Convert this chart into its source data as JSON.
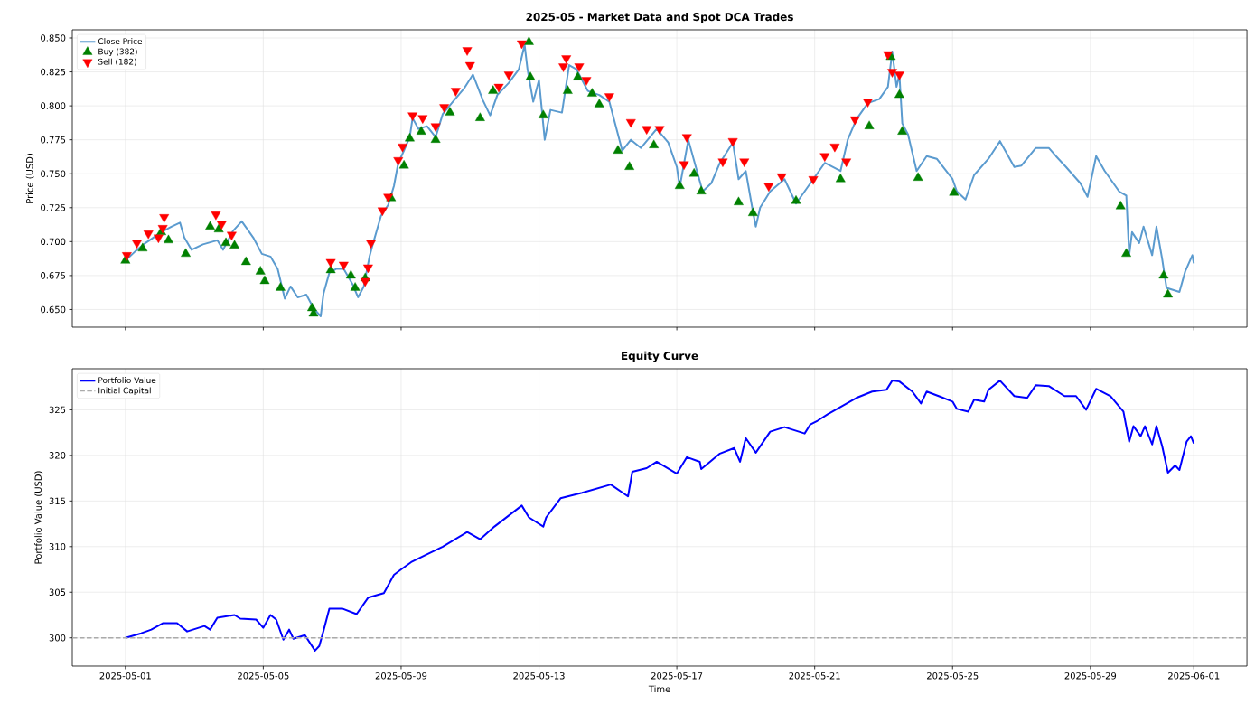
{
  "chart_data": [
    {
      "type": "line",
      "title": "2025-05 - Market Data and Spot DCA Trades",
      "ylabel": "Price (USD)",
      "xlim": [
        "2025-04-29T11:00",
        "2025-06-02T13:00"
      ],
      "ylim": [
        0.637,
        0.856
      ],
      "xticks": [
        "2025-05-01",
        "2025-05-05",
        "2025-05-09",
        "2025-05-13",
        "2025-05-17",
        "2025-05-21",
        "2025-05-25",
        "2025-05-29",
        "2025-06-01"
      ],
      "yticks": [
        {
          "value": 0.65,
          "label": "0.650"
        },
        0.675,
        {
          "value": 0.7,
          "label": "0.700"
        },
        0.725,
        {
          "value": 0.75,
          "label": "0.750"
        },
        0.775,
        {
          "value": 0.8,
          "label": "0.800"
        },
        0.825,
        {
          "value": 0.85,
          "label": "0.850"
        }
      ],
      "tick_labels": "y",
      "grid": true,
      "legend": "top left",
      "series": [
        {
          "name": "Close Price",
          "color": "#5b9bcf",
          "x": [
            "2025-05-01T00:00",
            "2025-05-01T07:00",
            "2025-05-01T14:00",
            "2025-05-02T01:00",
            "2025-05-02T08:00",
            "2025-05-02T14:00",
            "2025-05-02T17:00",
            "2025-05-02T22:00",
            "2025-05-03T06:00",
            "2025-05-03T16:00",
            "2025-05-03T20:00",
            "2025-05-04T03:00",
            "2025-05-04T09:00",
            "2025-05-04T17:00",
            "2025-05-04T23:00",
            "2025-05-05T05:00",
            "2025-05-05T10:00",
            "2025-05-05T15:00",
            "2025-05-05T19:00",
            "2025-05-06T00:00",
            "2025-05-06T06:00",
            "2025-05-06T11:00",
            "2025-05-06T16:00",
            "2025-05-06T18:00",
            "2025-05-06T22:00",
            "2025-05-07T03:00",
            "2025-05-07T08:00",
            "2025-05-07T14:00",
            "2025-05-07T18:00",
            "2025-05-07T22:00",
            "2025-05-08T02:00",
            "2025-05-08T04:00",
            "2025-05-08T10:00",
            "2025-05-08T15:00",
            "2025-05-08T19:00",
            "2025-05-08T22:00",
            "2025-05-09T02:00",
            "2025-05-09T06:00",
            "2025-05-09T08:00",
            "2025-05-09T12:00",
            "2025-05-09T18:00",
            "2025-05-10T00:00",
            "2025-05-10T05:00",
            "2025-05-10T12:00",
            "2025-05-10T20:00",
            "2025-05-11T02:00",
            "2025-05-11T09:00",
            "2025-05-11T14:00",
            "2025-05-11T19:00",
            "2025-05-12T03:00",
            "2025-05-12T10:00",
            "2025-05-12T14:00",
            "2025-05-12T16:00",
            "2025-05-12T20:00",
            "2025-05-13T00:00",
            "2025-05-13T04:00",
            "2025-05-13T08:00",
            "2025-05-13T16:00",
            "2025-05-13T21:00",
            "2025-05-14T02:00",
            "2025-05-14T10:00",
            "2025-05-14T18:00",
            "2025-05-15T01:00",
            "2025-05-15T10:00",
            "2025-05-15T16:00",
            "2025-05-15T23:00",
            "2025-05-16T10:00",
            "2025-05-16T18:00",
            "2025-05-17T00:00",
            "2025-05-17T02:00",
            "2025-05-17T08:00",
            "2025-05-17T14:00",
            "2025-05-17T18:00",
            "2025-05-18T00:00",
            "2025-05-18T06:00",
            "2025-05-18T15:00",
            "2025-05-18T19:00",
            "2025-05-19T00:00",
            "2025-05-19T05:00",
            "2025-05-19T07:00",
            "2025-05-19T10:00",
            "2025-05-19T17:00",
            "2025-05-20T03:00",
            "2025-05-20T11:00",
            "2025-05-20T21:00",
            "2025-05-21T07:00",
            "2025-05-21T18:00",
            "2025-05-21T23:00",
            "2025-05-22T05:00",
            "2025-05-22T13:00",
            "2025-05-22T21:00",
            "2025-05-23T03:00",
            "2025-05-23T06:00",
            "2025-05-23T09:00",
            "2025-05-23T11:00",
            "2025-05-23T13:00",
            "2025-05-23T17:00",
            "2025-05-23T23:00",
            "2025-05-24T06:00",
            "2025-05-24T13:00",
            "2025-05-25T00:00",
            "2025-05-25T03:00",
            "2025-05-25T09:00",
            "2025-05-25T15:00",
            "2025-05-26T01:00",
            "2025-05-26T09:00",
            "2025-05-26T19:00",
            "2025-05-27T00:00",
            "2025-05-27T10:00",
            "2025-05-27T19:00",
            "2025-05-28T00:00",
            "2025-05-28T07:00",
            "2025-05-28T17:00",
            "2025-05-28T22:00",
            "2025-05-29T04:00",
            "2025-05-29T10:00",
            "2025-05-29T20:00",
            "2025-05-30T01:00",
            "2025-05-30T03:00",
            "2025-05-30T05:00",
            "2025-05-30T10:00",
            "2025-05-30T13:00",
            "2025-05-30T19:00",
            "2025-05-30T22:00",
            "2025-05-31T02:00",
            "2025-05-31T05:00",
            "2025-05-31T14:00",
            "2025-05-31T18:00",
            "2025-05-31T23:00",
            "2025-06-01T00:00"
          ],
          "values": [
            0.686,
            0.693,
            0.699,
            0.707,
            0.711,
            0.714,
            0.703,
            0.694,
            0.698,
            0.701,
            0.694,
            0.708,
            0.715,
            0.703,
            0.691,
            0.689,
            0.68,
            0.658,
            0.667,
            0.659,
            0.661,
            0.651,
            0.645,
            0.662,
            0.677,
            0.68,
            0.68,
            0.669,
            0.659,
            0.667,
            0.689,
            0.697,
            0.719,
            0.727,
            0.741,
            0.758,
            0.767,
            0.777,
            0.791,
            0.783,
            0.785,
            0.777,
            0.794,
            0.803,
            0.813,
            0.823,
            0.804,
            0.793,
            0.808,
            0.817,
            0.827,
            0.845,
            0.827,
            0.803,
            0.819,
            0.775,
            0.797,
            0.795,
            0.83,
            0.827,
            0.811,
            0.808,
            0.803,
            0.767,
            0.775,
            0.769,
            0.783,
            0.773,
            0.755,
            0.74,
            0.775,
            0.752,
            0.737,
            0.743,
            0.758,
            0.773,
            0.746,
            0.752,
            0.722,
            0.711,
            0.725,
            0.737,
            0.746,
            0.728,
            0.743,
            0.758,
            0.752,
            0.775,
            0.79,
            0.802,
            0.805,
            0.814,
            0.84,
            0.814,
            0.823,
            0.787,
            0.779,
            0.752,
            0.763,
            0.761,
            0.746,
            0.737,
            0.731,
            0.749,
            0.761,
            0.774,
            0.755,
            0.756,
            0.769,
            0.769,
            0.763,
            0.755,
            0.743,
            0.733,
            0.763,
            0.752,
            0.737,
            0.734,
            0.69,
            0.707,
            0.699,
            0.711,
            0.69,
            0.711,
            0.687,
            0.666,
            0.663,
            0.678,
            0.69,
            0.684
          ]
        },
        {
          "name": "Buy (382)",
          "type": "scatter",
          "marker": "triangle",
          "color": "#008000",
          "x": [
            "2025-05-01T00:00",
            "2025-05-01T12:00",
            "2025-05-02T01:00",
            "2025-05-02T06:00",
            "2025-05-02T18:00",
            "2025-05-03T11:00",
            "2025-05-03T17:00",
            "2025-05-03T22:00",
            "2025-05-04T04:00",
            "2025-05-04T12:00",
            "2025-05-04T22:00",
            "2025-05-05T01:00",
            "2025-05-05T12:00",
            "2025-05-06T10:00",
            "2025-05-06T11:00",
            "2025-05-06T23:00",
            "2025-05-07T13:00",
            "2025-05-07T16:00",
            "2025-05-07T23:00",
            "2025-05-08T11:00",
            "2025-05-08T17:00",
            "2025-05-09T02:00",
            "2025-05-09T06:00",
            "2025-05-09T14:00",
            "2025-05-10T00:00",
            "2025-05-10T10:00",
            "2025-05-10T22:00",
            "2025-05-11T07:00",
            "2025-05-11T16:00",
            "2025-05-12T17:00",
            "2025-05-12T18:00",
            "2025-05-13T03:00",
            "2025-05-13T20:00",
            "2025-05-14T03:00",
            "2025-05-14T13:00",
            "2025-05-14T18:00",
            "2025-05-15T07:00",
            "2025-05-15T15:00",
            "2025-05-16T08:00",
            "2025-05-17T02:00",
            "2025-05-17T12:00",
            "2025-05-17T17:00",
            "2025-05-18T19:00",
            "2025-05-19T05:00",
            "2025-05-20T11:00",
            "2025-05-20T22:00",
            "2025-05-21T18:00",
            "2025-05-22T14:00",
            "2025-05-23T05:00",
            "2025-05-23T11:00",
            "2025-05-23T13:00",
            "2025-05-24T00:00",
            "2025-05-25T01:00",
            "2025-05-29T21:00",
            "2025-05-30T01:00",
            "2025-05-31T03:00",
            "2025-05-31T06:00"
          ],
          "values": [
            0.686,
            0.695,
            0.707,
            0.701,
            0.691,
            0.711,
            0.709,
            0.699,
            0.697,
            0.685,
            0.678,
            0.671,
            0.666,
            0.651,
            0.647,
            0.679,
            0.675,
            0.666,
            0.673,
            null,
            0.732,
            0.756,
            0.776,
            0.781,
            0.775,
            0.795,
            null,
            0.791,
            0.811,
            0.847,
            0.821,
            0.793,
            0.811,
            0.821,
            0.809,
            0.801,
            0.767,
            0.755,
            0.771,
            0.741,
            0.75,
            0.737,
            0.729,
            0.721,
            0.73,
            null,
            0.746,
            0.785,
            0.836,
            0.808,
            0.781,
            0.747,
            0.736,
            0.726,
            0.691,
            0.675,
            0.661
          ]
        },
        {
          "name": "Sell (182)",
          "type": "scatter",
          "marker": "triangle down",
          "color": "#ff0000",
          "x": [
            "2025-05-01T01:00",
            "2025-05-01T08:00",
            "2025-05-01T16:00",
            "2025-05-01T23:00",
            "2025-05-02T02:00",
            "2025-05-02T03:00",
            "2025-05-03T15:00",
            "2025-05-03T19:00",
            "2025-05-04T02:00",
            "2025-05-06T23:00",
            "2025-05-07T08:00",
            "2025-05-07T23:00",
            "2025-05-08T01:00",
            "2025-05-08T03:00",
            "2025-05-08T11:00",
            "2025-05-08T15:00",
            "2025-05-08T22:00",
            "2025-05-09T01:00",
            "2025-05-09T08:00",
            "2025-05-09T15:00",
            "2025-05-10T00:00",
            "2025-05-10T06:00",
            "2025-05-10T14:00",
            "2025-05-10T22:00",
            "2025-05-11T00:00",
            "2025-05-11T20:00",
            "2025-05-12T03:00",
            "2025-05-12T12:00",
            "2025-05-13T17:00",
            "2025-05-13T19:00",
            "2025-05-14T04:00",
            "2025-05-14T09:00",
            "2025-05-15T01:00",
            "2025-05-15T16:00",
            "2025-05-16T03:00",
            "2025-05-16T12:00",
            "2025-05-17T05:00",
            "2025-05-17T07:00",
            "2025-05-18T08:00",
            "2025-05-18T15:00",
            "2025-05-18T23:00",
            "2025-05-19T16:00",
            "2025-05-20T01:00",
            "2025-05-20T23:00",
            "2025-05-21T07:00",
            "2025-05-21T14:00",
            "2025-05-21T22:00",
            "2025-05-22T04:00",
            "2025-05-22T13:00",
            "2025-05-23T03:00",
            "2025-05-23T06:00",
            "2025-05-23T11:00"
          ],
          "values": [
            0.69,
            0.699,
            0.706,
            0.703,
            0.71,
            0.718,
            0.72,
            0.713,
            0.705,
            0.685,
            0.683,
            0.671,
            0.681,
            0.699,
            0.723,
            0.733,
            0.76,
            0.77,
            0.793,
            0.791,
            0.785,
            0.799,
            0.811,
            0.841,
            0.83,
            0.814,
            0.823,
            0.846,
            0.829,
            0.835,
            0.829,
            0.819,
            0.807,
            0.788,
            0.783,
            0.783,
            0.757,
            0.777,
            0.759,
            0.774,
            0.759,
            0.741,
            0.748,
            0.746,
            0.763,
            0.77,
            0.759,
            0.79,
            0.803,
            0.838,
            0.825,
            0.823
          ]
        }
      ]
    },
    {
      "type": "line",
      "title": "Equity Curve",
      "xlabel": "Time",
      "ylabel": "Portfolio Value (USD)",
      "xlim": [
        "2025-04-29T11:00",
        "2025-06-02T13:00"
      ],
      "ylim": [
        296.9,
        329.5
      ],
      "xticks": [
        "2025-05-01",
        "2025-05-05",
        "2025-05-09",
        "2025-05-13",
        "2025-05-17",
        "2025-05-21",
        "2025-05-25",
        "2025-05-29",
        "2025-06-01"
      ],
      "yticks": [
        300,
        305,
        310,
        315,
        320,
        325
      ],
      "grid": true,
      "legend": "top left",
      "series": [
        {
          "name": "Portfolio Value",
          "color": "#0000ff",
          "x": [
            "2025-05-01T00:00",
            "2025-05-01T11:00",
            "2025-05-01T18:00",
            "2025-05-02T02:00",
            "2025-05-02T12:00",
            "2025-05-02T19:00",
            "2025-05-03T07:00",
            "2025-05-03T11:00",
            "2025-05-03T16:00",
            "2025-05-04T04:00",
            "2025-05-04T08:00",
            "2025-05-04T19:00",
            "2025-05-05T00:00",
            "2025-05-05T05:00",
            "2025-05-05T09:00",
            "2025-05-05T14:00",
            "2025-05-05T18:00",
            "2025-05-05T21:00",
            "2025-05-06T05:00",
            "2025-05-06T12:00",
            "2025-05-06T15:00",
            "2025-05-06T18:00",
            "2025-05-06T22:00",
            "2025-05-07T07:00",
            "2025-05-07T17:00",
            "2025-05-08T01:00",
            "2025-05-08T12:00",
            "2025-05-08T19:00",
            "2025-05-09T00:00",
            "2025-05-09T07:00",
            "2025-05-09T16:00",
            "2025-05-10T05:00",
            "2025-05-10T22:00",
            "2025-05-11T07:00",
            "2025-05-11T17:00",
            "2025-05-12T12:00",
            "2025-05-12T17:00",
            "2025-05-13T03:00",
            "2025-05-13T05:00",
            "2025-05-13T15:00",
            "2025-05-14T06:00",
            "2025-05-15T02:00",
            "2025-05-15T14:00",
            "2025-05-15T17:00",
            "2025-05-16T03:00",
            "2025-05-16T10:00",
            "2025-05-17T00:00",
            "2025-05-17T07:00",
            "2025-05-17T16:00",
            "2025-05-17T17:00",
            "2025-05-18T06:00",
            "2025-05-18T16:00",
            "2025-05-18T20:00",
            "2025-05-19T00:00",
            "2025-05-19T07:00",
            "2025-05-19T17:00",
            "2025-05-20T03:00",
            "2025-05-20T17:00",
            "2025-05-20T21:00",
            "2025-05-21T02:00",
            "2025-05-21T09:00",
            "2025-05-22T05:00",
            "2025-05-22T16:00",
            "2025-05-23T02:00",
            "2025-05-23T06:00",
            "2025-05-23T11:00",
            "2025-05-23T20:00",
            "2025-05-24T02:00",
            "2025-05-24T06:00",
            "2025-05-24T16:00",
            "2025-05-25T00:00",
            "2025-05-25T03:00",
            "2025-05-25T11:00",
            "2025-05-25T15:00",
            "2025-05-25T22:00",
            "2025-05-26T01:00",
            "2025-05-26T09:00",
            "2025-05-26T19:00",
            "2025-05-27T04:00",
            "2025-05-27T10:00",
            "2025-05-27T19:00",
            "2025-05-28T06:00",
            "2025-05-28T14:00",
            "2025-05-28T21:00",
            "2025-05-29T04:00",
            "2025-05-29T14:00",
            "2025-05-29T23:00",
            "2025-05-30T03:00",
            "2025-05-30T06:00",
            "2025-05-30T11:00",
            "2025-05-30T14:00",
            "2025-05-30T19:00",
            "2025-05-30T22:00",
            "2025-05-31T02:00",
            "2025-05-31T06:00",
            "2025-05-31T11:00",
            "2025-05-31T14:00",
            "2025-05-31T19:00",
            "2025-05-31T22:00",
            "2025-06-01T00:00"
          ],
          "values": [
            300.0,
            300.5,
            300.9,
            301.6,
            301.6,
            300.7,
            301.3,
            300.9,
            302.2,
            302.5,
            302.1,
            302.0,
            301.1,
            302.5,
            302.0,
            299.8,
            300.9,
            299.9,
            300.3,
            298.6,
            299.1,
            300.8,
            303.2,
            303.2,
            302.6,
            304.4,
            304.9,
            306.9,
            307.5,
            308.3,
            309.0,
            310.0,
            311.6,
            310.8,
            312.2,
            314.5,
            313.2,
            312.2,
            313.2,
            315.3,
            315.9,
            316.8,
            315.5,
            318.2,
            318.6,
            319.3,
            318.0,
            319.8,
            319.3,
            318.5,
            320.2,
            320.8,
            319.3,
            321.9,
            320.3,
            322.6,
            323.1,
            322.4,
            323.4,
            323.8,
            324.5,
            326.3,
            327.0,
            327.2,
            328.2,
            328.1,
            327.0,
            325.7,
            327.0,
            326.4,
            325.9,
            325.1,
            324.8,
            326.1,
            325.9,
            327.2,
            328.2,
            326.5,
            326.3,
            327.7,
            327.6,
            326.5,
            326.5,
            325.0,
            327.3,
            326.5,
            324.8,
            321.5,
            323.2,
            322.1,
            323.2,
            321.2,
            323.2,
            321.0,
            318.1,
            318.9,
            318.4,
            321.5,
            322.1,
            321.3
          ]
        }
      ],
      "ref_lines": [
        {
          "axis": "y",
          "value": 300,
          "label": "Initial Capital",
          "color": "#aaaaaa",
          "line_style": "dashed"
        }
      ]
    }
  ]
}
